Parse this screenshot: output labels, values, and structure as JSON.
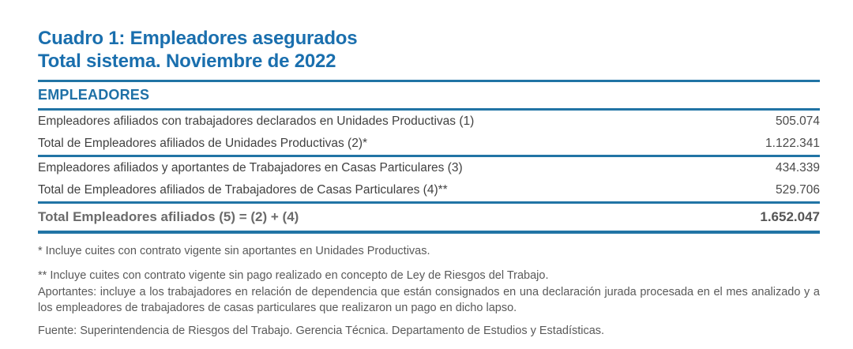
{
  "header": {
    "title": "Cuadro 1: Empleadores asegurados",
    "subtitle": "Total sistema. Noviembre de 2022"
  },
  "table": {
    "section_header": "EMPLEADORES",
    "rows": [
      {
        "label": "Empleadores afiliados con trabajadores declarados en Unidades Productivas (1)",
        "value": "505.074"
      },
      {
        "label": "Total de Empleadores afiliados de Unidades Productivas (2)*",
        "value": "1.122.341"
      },
      {
        "label": "Empleadores afiliados y aportantes de Trabajadores en Casas Particulares (3)",
        "value": "434.339"
      },
      {
        "label": "Total de Empleadores afiliados de Trabajadores de Casas Particulares (4)**",
        "value": "529.706"
      }
    ],
    "total": {
      "label": "Total Empleadores afiliados (5) = (2) + (4)",
      "value": "1.652.047"
    }
  },
  "footnotes": {
    "note1": "* Incluye cuites con contrato vigente sin aportantes en Unidades Productivas.",
    "note2": "** Incluye cuites con contrato vigente sin pago realizado en concepto de Ley de Riesgos del Trabajo.",
    "aportantes": "Aportantes: incluye a los trabajadores en relación de dependencia que están consignados en una declaración jurada procesada en el mes analizado y a los empleadores de trabajadores de casas particulares que realizaron un pago en dicho lapso.",
    "fuente": "Fuente: Superintendencia de Riesgos del Trabajo. Gerencia Técnica. Departamento de Estudios y Estadísticas."
  },
  "colors": {
    "rule_blue": "#2174A5",
    "title_blue": "#1A6FAE",
    "section_blue": "#1E70A6",
    "row_text": "#414141",
    "total_text": "#6B6B6B",
    "footnote_text": "#595959",
    "page_bg": "#FFFFFF"
  }
}
